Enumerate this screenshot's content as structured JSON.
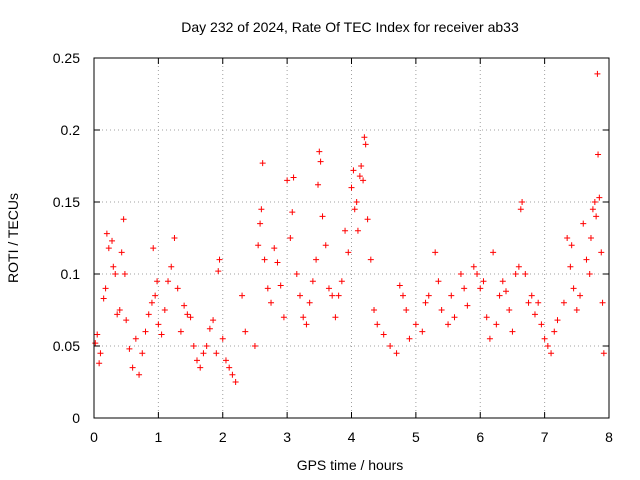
{
  "chart_data": {
    "type": "scatter",
    "title": "Day 232 of 2024, Rate Of TEC Index for receiver ab33",
    "xlabel": "GPS time / hours",
    "ylabel": "ROTI / TECUs",
    "xlim": [
      0,
      8
    ],
    "ylim": [
      0,
      0.25
    ],
    "x_ticks": [
      0,
      1,
      2,
      3,
      4,
      5,
      6,
      7,
      8
    ],
    "x_tick_labels": [
      "0",
      "1",
      "2",
      "3",
      "4",
      "5",
      "6",
      "7",
      "8"
    ],
    "y_ticks": [
      0,
      0.05,
      0.1,
      0.15,
      0.2,
      0.25
    ],
    "y_tick_labels": [
      "0",
      "0.05",
      "0.1",
      "0.15",
      "0.2",
      "0.25"
    ],
    "grid": true,
    "marker": "+",
    "color": "#ff0000",
    "points": [
      [
        0.02,
        0.052
      ],
      [
        0.05,
        0.058
      ],
      [
        0.08,
        0.038
      ],
      [
        0.1,
        0.045
      ],
      [
        0.15,
        0.083
      ],
      [
        0.18,
        0.09
      ],
      [
        0.2,
        0.128
      ],
      [
        0.23,
        0.118
      ],
      [
        0.28,
        0.123
      ],
      [
        0.3,
        0.105
      ],
      [
        0.33,
        0.1
      ],
      [
        0.36,
        0.072
      ],
      [
        0.4,
        0.075
      ],
      [
        0.43,
        0.115
      ],
      [
        0.46,
        0.138
      ],
      [
        0.48,
        0.1
      ],
      [
        0.5,
        0.068
      ],
      [
        0.55,
        0.048
      ],
      [
        0.6,
        0.035
      ],
      [
        0.65,
        0.055
      ],
      [
        0.7,
        0.03
      ],
      [
        0.75,
        0.045
      ],
      [
        0.8,
        0.06
      ],
      [
        0.85,
        0.072
      ],
      [
        0.9,
        0.08
      ],
      [
        0.92,
        0.118
      ],
      [
        0.95,
        0.085
      ],
      [
        0.98,
        0.095
      ],
      [
        1.0,
        0.065
      ],
      [
        1.05,
        0.058
      ],
      [
        1.1,
        0.075
      ],
      [
        1.15,
        0.095
      ],
      [
        1.2,
        0.105
      ],
      [
        1.25,
        0.125
      ],
      [
        1.3,
        0.09
      ],
      [
        1.35,
        0.06
      ],
      [
        1.4,
        0.078
      ],
      [
        1.45,
        0.072
      ],
      [
        1.5,
        0.07
      ],
      [
        1.55,
        0.05
      ],
      [
        1.6,
        0.04
      ],
      [
        1.65,
        0.035
      ],
      [
        1.7,
        0.045
      ],
      [
        1.75,
        0.05
      ],
      [
        1.8,
        0.062
      ],
      [
        1.85,
        0.068
      ],
      [
        1.9,
        0.045
      ],
      [
        1.93,
        0.102
      ],
      [
        1.95,
        0.11
      ],
      [
        2.0,
        0.055
      ],
      [
        2.05,
        0.04
      ],
      [
        2.1,
        0.035
      ],
      [
        2.15,
        0.03
      ],
      [
        2.2,
        0.025
      ],
      [
        2.3,
        0.085
      ],
      [
        2.35,
        0.06
      ],
      [
        2.5,
        0.05
      ],
      [
        2.55,
        0.12
      ],
      [
        2.58,
        0.135
      ],
      [
        2.6,
        0.145
      ],
      [
        2.62,
        0.177
      ],
      [
        2.65,
        0.11
      ],
      [
        2.7,
        0.09
      ],
      [
        2.75,
        0.08
      ],
      [
        2.8,
        0.118
      ],
      [
        2.85,
        0.108
      ],
      [
        2.9,
        0.092
      ],
      [
        2.95,
        0.07
      ],
      [
        3.0,
        0.165
      ],
      [
        3.05,
        0.125
      ],
      [
        3.08,
        0.143
      ],
      [
        3.1,
        0.167
      ],
      [
        3.15,
        0.1
      ],
      [
        3.2,
        0.085
      ],
      [
        3.25,
        0.07
      ],
      [
        3.3,
        0.065
      ],
      [
        3.35,
        0.08
      ],
      [
        3.4,
        0.095
      ],
      [
        3.45,
        0.11
      ],
      [
        3.48,
        0.162
      ],
      [
        3.5,
        0.185
      ],
      [
        3.52,
        0.178
      ],
      [
        3.55,
        0.14
      ],
      [
        3.6,
        0.12
      ],
      [
        3.65,
        0.09
      ],
      [
        3.7,
        0.085
      ],
      [
        3.75,
        0.07
      ],
      [
        3.8,
        0.085
      ],
      [
        3.85,
        0.095
      ],
      [
        3.9,
        0.13
      ],
      [
        3.95,
        0.115
      ],
      [
        4.0,
        0.16
      ],
      [
        4.03,
        0.172
      ],
      [
        4.05,
        0.145
      ],
      [
        4.08,
        0.15
      ],
      [
        4.1,
        0.13
      ],
      [
        4.13,
        0.168
      ],
      [
        4.15,
        0.175
      ],
      [
        4.18,
        0.165
      ],
      [
        4.2,
        0.195
      ],
      [
        4.22,
        0.19
      ],
      [
        4.25,
        0.138
      ],
      [
        4.3,
        0.11
      ],
      [
        4.35,
        0.075
      ],
      [
        4.4,
        0.065
      ],
      [
        4.5,
        0.058
      ],
      [
        4.6,
        0.05
      ],
      [
        4.7,
        0.045
      ],
      [
        4.75,
        0.092
      ],
      [
        4.8,
        0.085
      ],
      [
        4.85,
        0.075
      ],
      [
        4.9,
        0.055
      ],
      [
        5.0,
        0.065
      ],
      [
        5.1,
        0.06
      ],
      [
        5.15,
        0.08
      ],
      [
        5.2,
        0.085
      ],
      [
        5.3,
        0.115
      ],
      [
        5.35,
        0.095
      ],
      [
        5.4,
        0.075
      ],
      [
        5.5,
        0.065
      ],
      [
        5.55,
        0.085
      ],
      [
        5.6,
        0.07
      ],
      [
        5.7,
        0.1
      ],
      [
        5.75,
        0.09
      ],
      [
        5.8,
        0.078
      ],
      [
        5.9,
        0.105
      ],
      [
        5.95,
        0.1
      ],
      [
        6.0,
        0.09
      ],
      [
        6.05,
        0.095
      ],
      [
        6.1,
        0.07
      ],
      [
        6.15,
        0.055
      ],
      [
        6.2,
        0.115
      ],
      [
        6.25,
        0.065
      ],
      [
        6.3,
        0.085
      ],
      [
        6.35,
        0.095
      ],
      [
        6.4,
        0.088
      ],
      [
        6.45,
        0.075
      ],
      [
        6.5,
        0.06
      ],
      [
        6.55,
        0.1
      ],
      [
        6.6,
        0.105
      ],
      [
        6.63,
        0.145
      ],
      [
        6.65,
        0.15
      ],
      [
        6.7,
        0.1
      ],
      [
        6.75,
        0.08
      ],
      [
        6.8,
        0.085
      ],
      [
        6.85,
        0.072
      ],
      [
        6.9,
        0.08
      ],
      [
        6.95,
        0.065
      ],
      [
        7.0,
        0.055
      ],
      [
        7.05,
        0.05
      ],
      [
        7.1,
        0.045
      ],
      [
        7.15,
        0.06
      ],
      [
        7.2,
        0.068
      ],
      [
        7.3,
        0.08
      ],
      [
        7.35,
        0.125
      ],
      [
        7.4,
        0.105
      ],
      [
        7.42,
        0.12
      ],
      [
        7.45,
        0.09
      ],
      [
        7.5,
        0.075
      ],
      [
        7.55,
        0.085
      ],
      [
        7.6,
        0.135
      ],
      [
        7.65,
        0.11
      ],
      [
        7.7,
        0.1
      ],
      [
        7.72,
        0.125
      ],
      [
        7.75,
        0.145
      ],
      [
        7.78,
        0.15
      ],
      [
        7.8,
        0.14
      ],
      [
        7.82,
        0.239
      ],
      [
        7.83,
        0.183
      ],
      [
        7.85,
        0.153
      ],
      [
        7.88,
        0.115
      ],
      [
        7.9,
        0.08
      ],
      [
        7.92,
        0.045
      ]
    ]
  }
}
